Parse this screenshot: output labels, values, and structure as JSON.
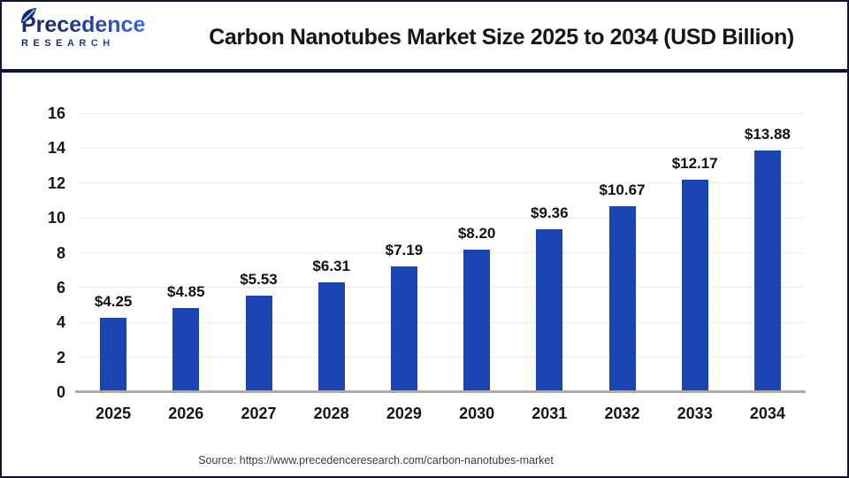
{
  "header": {
    "logo_brand": "Precedence",
    "logo_sub": "RESEARCH",
    "title": "Carbon Nanotubes Market Size 2025 to 2034 (USD Billion)"
  },
  "chart_data": {
    "type": "bar",
    "title": "Carbon Nanotubes Market Size 2025 to 2034 (USD Billion)",
    "categories": [
      "2025",
      "2026",
      "2027",
      "2028",
      "2029",
      "2030",
      "2031",
      "2032",
      "2033",
      "2034"
    ],
    "values": [
      4.25,
      4.85,
      5.53,
      6.31,
      7.19,
      8.2,
      9.36,
      10.67,
      12.17,
      13.88
    ],
    "bar_labels": [
      "$4.25",
      "$4.85",
      "$5.53",
      "$6.31",
      "$7.19",
      "$8.20",
      "$9.36",
      "$10.67",
      "$12.17",
      "$13.88"
    ],
    "xlabel": "",
    "ylabel": "",
    "ylim": [
      0,
      16
    ],
    "yticks": [
      0,
      2,
      4,
      6,
      8,
      10,
      12,
      14,
      16
    ],
    "grid": true,
    "legend": false,
    "bar_color": "#1b45b2",
    "gridline_color": "#ececec",
    "axis_line_color": "#ababab"
  },
  "footer": {
    "source": "Source: https://www.precedenceresearch.com/carbon-nanotubes-market"
  },
  "colors": {
    "border_navy": "#0d1333",
    "logo_navy": "#1c2b6e",
    "logo_blue": "#3b6ce0",
    "title_text": "#161616"
  }
}
